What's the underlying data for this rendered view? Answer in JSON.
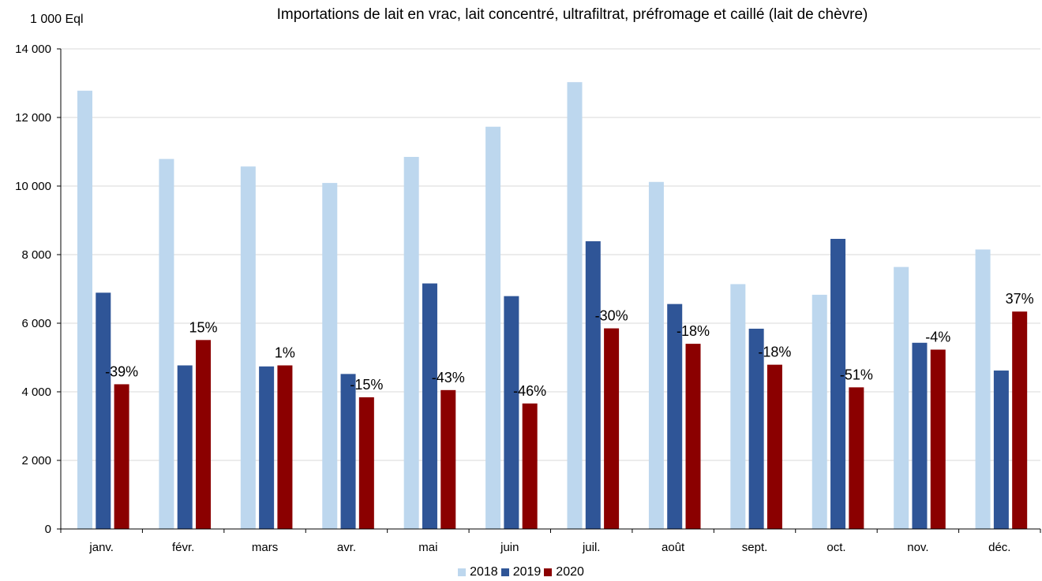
{
  "chart_data": {
    "type": "bar",
    "title": "Importations de lait en vrac, lait concentré, ultrafiltrat, préfromage et caillé (lait de chèvre)",
    "ylabel": "1 000 Eql",
    "xlabel": "",
    "ylim": [
      0,
      14000
    ],
    "yticks": [
      0,
      2000,
      4000,
      6000,
      8000,
      10000,
      12000,
      14000
    ],
    "ytick_labels": [
      "0",
      "2 000",
      "4 000",
      "6 000",
      "8 000",
      "10 000",
      "12 000",
      "14 000"
    ],
    "grid": true,
    "legend_position": "bottom",
    "categories": [
      "janv.",
      "févr.",
      "mars",
      "avr.",
      "mai",
      "juin",
      "juil.",
      "août",
      "sept.",
      "oct.",
      "nov.",
      "déc."
    ],
    "series": [
      {
        "name": "2018",
        "color": "#bdd7ee",
        "values": [
          12780,
          10790,
          10570,
          10090,
          10850,
          11730,
          13030,
          10120,
          7140,
          6830,
          7640,
          8150
        ]
      },
      {
        "name": "2019",
        "color": "#2f5597",
        "values": [
          6890,
          4770,
          4740,
          4520,
          7160,
          6790,
          8390,
          6560,
          5840,
          8460,
          5430,
          4620
        ]
      },
      {
        "name": "2020",
        "color": "#8b0000",
        "values": [
          4220,
          5510,
          4770,
          3840,
          4050,
          3660,
          5850,
          5400,
          4790,
          4130,
          5230,
          6340
        ]
      }
    ],
    "data_labels": [
      "-39%",
      "15%",
      "1%",
      "-15%",
      "-43%",
      "-46%",
      "-30%",
      "-18%",
      "-18%",
      "-51%",
      "-4%",
      "37%"
    ]
  }
}
